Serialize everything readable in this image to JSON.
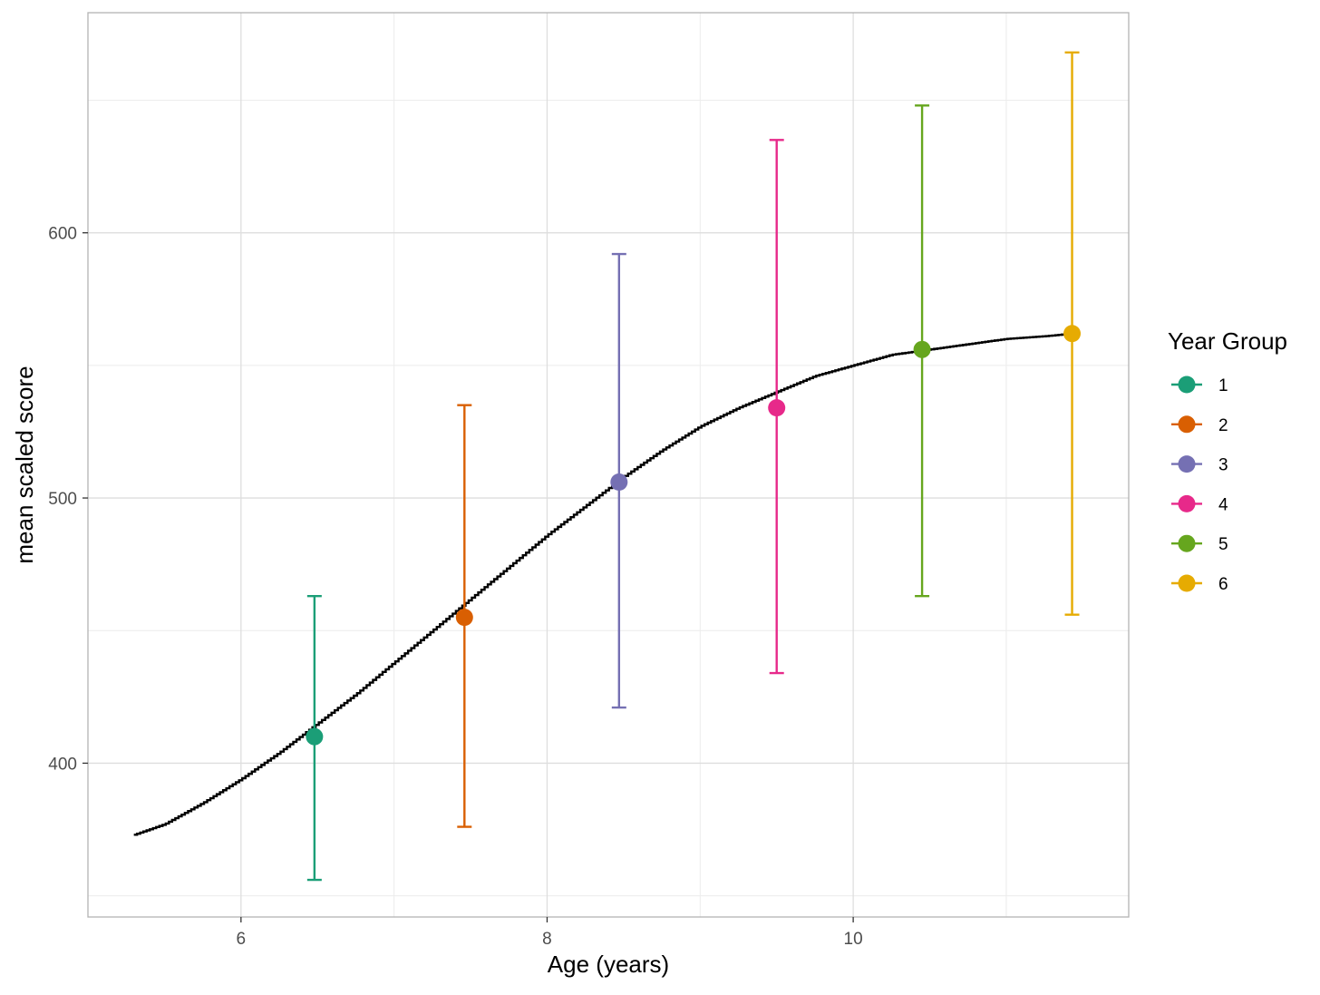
{
  "chart_data": {
    "type": "scatter",
    "xlabel": "Age (years)",
    "ylabel": "mean scaled score",
    "xlim": [
      5.0,
      11.8
    ],
    "ylim": [
      342,
      683
    ],
    "x_ticks": [
      6,
      8,
      10
    ],
    "y_ticks": [
      400,
      500,
      600
    ],
    "grid": true,
    "legend": {
      "title": "Year Group",
      "placement": "right"
    },
    "series": [
      {
        "name": "1",
        "x": 6.48,
        "y": 410,
        "ymin": 356,
        "ymax": 463,
        "color": "#1b9e77"
      },
      {
        "name": "2",
        "x": 7.46,
        "y": 455,
        "ymin": 376,
        "ymax": 535,
        "color": "#d95f02"
      },
      {
        "name": "3",
        "x": 8.47,
        "y": 506,
        "ymin": 421,
        "ymax": 592,
        "color": "#7570b3"
      },
      {
        "name": "4",
        "x": 9.5,
        "y": 534,
        "ymin": 434,
        "ymax": 635,
        "color": "#e7298a"
      },
      {
        "name": "5",
        "x": 10.45,
        "y": 556,
        "ymin": 463,
        "ymax": 648,
        "color": "#66a61e"
      },
      {
        "name": "6",
        "x": 11.43,
        "y": 562,
        "ymin": 456,
        "ymax": 668,
        "color": "#e6ab02"
      }
    ],
    "trend_line": {
      "color": "#000000",
      "x": [
        5.3,
        5.5,
        5.75,
        6.0,
        6.25,
        6.5,
        6.75,
        7.0,
        7.25,
        7.5,
        7.75,
        8.0,
        8.25,
        8.5,
        8.75,
        9.0,
        9.25,
        9.5,
        9.75,
        10.0,
        10.25,
        10.5,
        10.75,
        11.0,
        11.25,
        11.43
      ],
      "y": [
        373,
        377,
        385,
        394,
        404,
        415,
        426,
        438,
        450,
        462,
        474,
        486,
        497,
        508,
        518,
        527,
        534,
        540,
        546,
        550,
        554,
        556,
        558,
        560,
        561,
        562
      ]
    }
  }
}
